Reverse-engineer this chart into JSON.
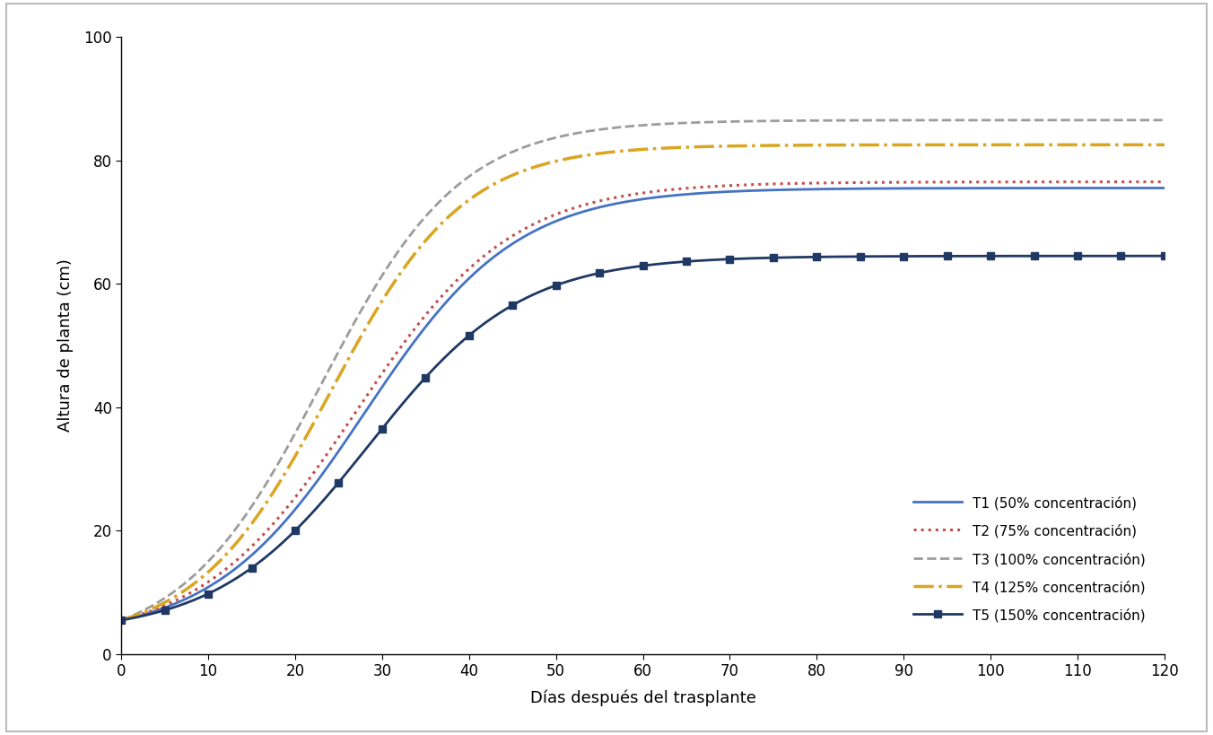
{
  "xlabel": "Días después del trasplante",
  "ylabel": "Altura de planta (cm)",
  "xlim": [
    0,
    120
  ],
  "ylim": [
    0,
    100
  ],
  "xticks": [
    0,
    10,
    20,
    30,
    40,
    50,
    60,
    70,
    80,
    90,
    100,
    110,
    120
  ],
  "yticks": [
    0,
    20,
    40,
    60,
    80,
    100
  ],
  "background_color": "#ffffff",
  "series": [
    {
      "label": "T1 (50% concentración)",
      "color": "#4472C4",
      "linestyle": "solid",
      "linewidth": 2.0,
      "marker": null,
      "L": 75.5,
      "k": 0.115,
      "x0": 28.0,
      "y0": 5.5
    },
    {
      "label": "T2 (75% concentración)",
      "color": "#C0504D",
      "linestyle": "dotted",
      "linewidth": 2.2,
      "marker": null,
      "L": 76.5,
      "k": 0.112,
      "x0": 27.0,
      "y0": 5.5
    },
    {
      "label": "T3 (100% concentración)",
      "color": "#9C9C9C",
      "linestyle": "dashed",
      "linewidth": 2.0,
      "marker": null,
      "L": 86.5,
      "k": 0.125,
      "x0": 23.0,
      "y0": 5.5
    },
    {
      "label": "T4 (125% concentración)",
      "color": "#DAA520",
      "linestyle": "dashdot",
      "linewidth": 2.5,
      "marker": null,
      "L": 82.5,
      "k": 0.13,
      "x0": 24.0,
      "y0": 5.5
    },
    {
      "label": "T5 (150% concentración)",
      "color": "#1F3864",
      "linestyle": "solid",
      "linewidth": 2.0,
      "marker": "s",
      "markersize": 6,
      "L": 64.5,
      "k": 0.115,
      "x0": 28.5,
      "y0": 5.5
    }
  ],
  "legend_fontsize": 11,
  "axis_fontsize": 13,
  "tick_fontsize": 12
}
